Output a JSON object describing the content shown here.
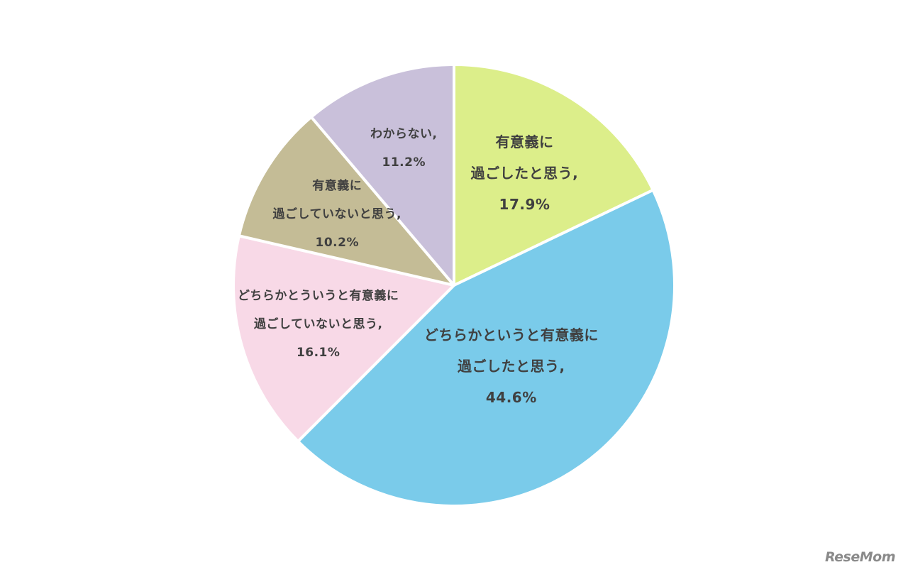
{
  "chart_data": {
    "type": "pie",
    "start_angle_deg": 0,
    "direction": "clockwise",
    "slices": [
      {
        "label_lines": [
          "有意義に",
          "過ごしたと思う,",
          "17.9%"
        ],
        "value": 17.9,
        "color": "#DCEE8A"
      },
      {
        "label_lines": [
          "どちらかというと有意義に",
          "過ごしたと思う,",
          "44.6%"
        ],
        "value": 44.6,
        "color": "#7ACBEA"
      },
      {
        "label_lines": [
          "どちらかとういうと有意義に",
          "過ごしていないと思う,",
          "16.1%"
        ],
        "value": 16.1,
        "color": "#F8D9E7"
      },
      {
        "label_lines": [
          "有意義に",
          "過ごしていないと思う,",
          "10.2%"
        ],
        "value": 10.2,
        "color": "#C4BC96"
      },
      {
        "label_lines": [
          "わからない,",
          "11.2%"
        ],
        "value": 11.2,
        "color": "#C9C0DA"
      }
    ]
  },
  "watermark": {
    "text": "ReseMom"
  }
}
